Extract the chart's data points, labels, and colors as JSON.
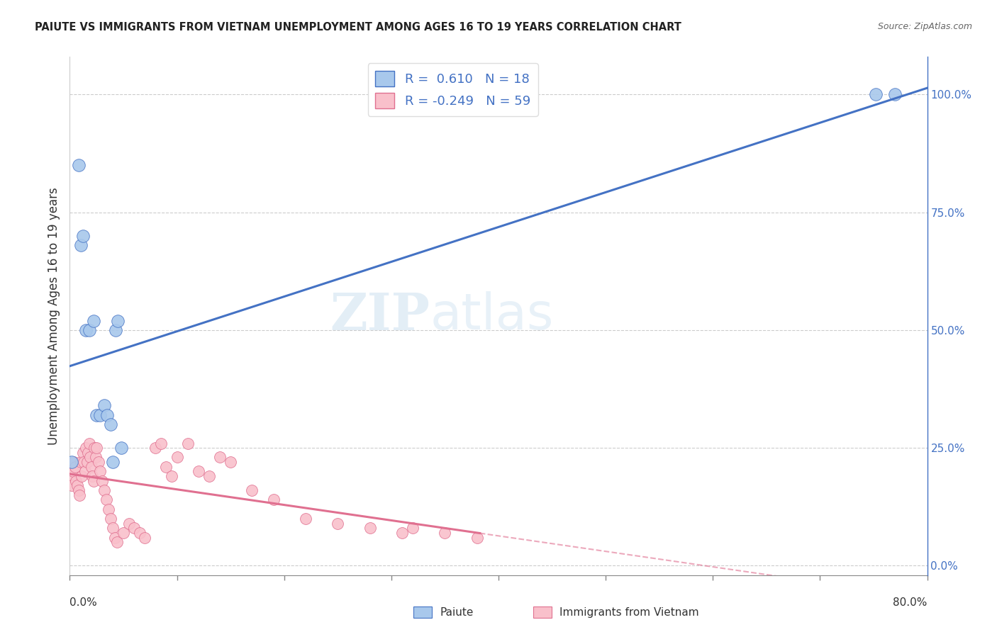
{
  "title": "PAIUTE VS IMMIGRANTS FROM VIETNAM UNEMPLOYMENT AMONG AGES 16 TO 19 YEARS CORRELATION CHART",
  "source": "Source: ZipAtlas.com",
  "ylabel": "Unemployment Among Ages 16 to 19 years",
  "watermark_zip": "ZIP",
  "watermark_atlas": "atlas",
  "legend_paiute_r": " 0.610",
  "legend_paiute_n": "18",
  "legend_vietnam_r": "-0.249",
  "legend_vietnam_n": "59",
  "paiute_color": "#A8C8EC",
  "vietnam_color": "#F9C0CB",
  "trendline_paiute_color": "#4472C4",
  "trendline_vietnam_color": "#E07090",
  "right_axis_color": "#4472C4",
  "xlim": [
    0.0,
    0.8
  ],
  "ylim": [
    -0.02,
    1.08
  ],
  "right_yticks": [
    0.0,
    0.25,
    0.5,
    0.75,
    1.0
  ],
  "right_yticklabels": [
    "0.0%",
    "25.0%",
    "50.0%",
    "75.0%",
    "100.0%"
  ],
  "paiute_x": [
    0.002,
    0.008,
    0.01,
    0.012,
    0.015,
    0.018,
    0.022,
    0.025,
    0.028,
    0.032,
    0.035,
    0.038,
    0.04,
    0.043,
    0.045,
    0.048,
    0.752,
    0.77
  ],
  "paiute_y": [
    0.22,
    0.85,
    0.68,
    0.7,
    0.5,
    0.5,
    0.52,
    0.32,
    0.32,
    0.34,
    0.32,
    0.3,
    0.22,
    0.5,
    0.52,
    0.25,
    1.0,
    1.0
  ],
  "vietnam_x": [
    0.001,
    0.002,
    0.003,
    0.004,
    0.005,
    0.006,
    0.007,
    0.008,
    0.009,
    0.01,
    0.011,
    0.012,
    0.013,
    0.014,
    0.015,
    0.016,
    0.017,
    0.018,
    0.019,
    0.02,
    0.021,
    0.022,
    0.023,
    0.024,
    0.025,
    0.027,
    0.028,
    0.03,
    0.032,
    0.034,
    0.036,
    0.038,
    0.04,
    0.042,
    0.044,
    0.05,
    0.055,
    0.06,
    0.065,
    0.07,
    0.08,
    0.085,
    0.09,
    0.095,
    0.1,
    0.11,
    0.12,
    0.13,
    0.14,
    0.15,
    0.17,
    0.19,
    0.22,
    0.25,
    0.28,
    0.31,
    0.32,
    0.35,
    0.38
  ],
  "vietnam_y": [
    0.19,
    0.17,
    0.2,
    0.22,
    0.21,
    0.18,
    0.17,
    0.16,
    0.15,
    0.22,
    0.19,
    0.24,
    0.22,
    0.2,
    0.25,
    0.22,
    0.24,
    0.26,
    0.23,
    0.21,
    0.19,
    0.18,
    0.25,
    0.23,
    0.25,
    0.22,
    0.2,
    0.18,
    0.16,
    0.14,
    0.12,
    0.1,
    0.08,
    0.06,
    0.05,
    0.07,
    0.09,
    0.08,
    0.07,
    0.06,
    0.25,
    0.26,
    0.21,
    0.19,
    0.23,
    0.26,
    0.2,
    0.19,
    0.23,
    0.22,
    0.16,
    0.14,
    0.1,
    0.09,
    0.08,
    0.07,
    0.08,
    0.07,
    0.06
  ],
  "background_color": "#ffffff",
  "grid_color": "#cccccc",
  "xtick_positions": [
    0.0,
    0.1,
    0.2,
    0.3,
    0.4,
    0.5,
    0.6,
    0.7,
    0.8
  ]
}
